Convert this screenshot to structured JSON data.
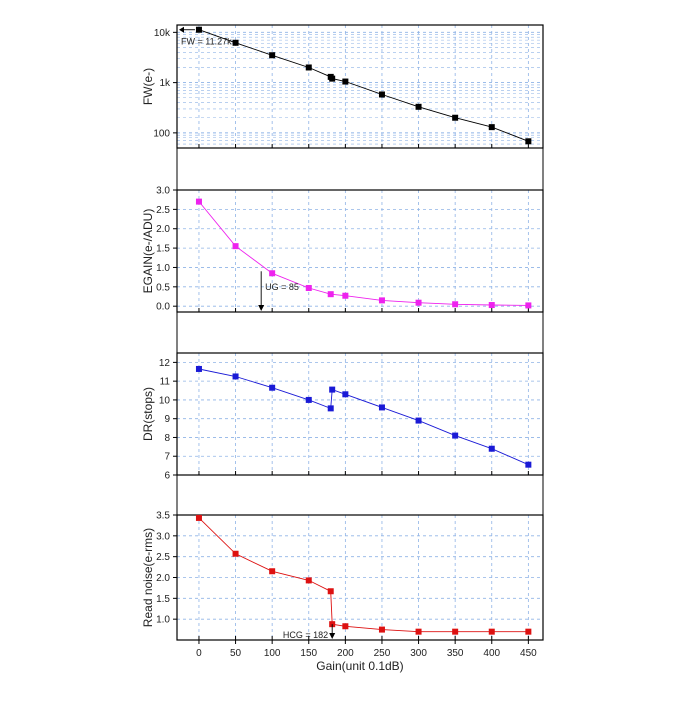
{
  "chart_data": [
    {
      "type": "line",
      "ylabel": "FW(e-)",
      "yscale": "log",
      "ylim": [
        50,
        14000
      ],
      "yticks": [
        100,
        1000,
        10000
      ],
      "ytick_labels": [
        "100",
        "1k",
        "10k"
      ],
      "xlim": [
        -30,
        470
      ],
      "color": "#000000",
      "x": [
        0,
        50,
        100,
        150,
        180,
        182,
        200,
        250,
        300,
        350,
        400,
        450
      ],
      "y": [
        11270,
        6200,
        3500,
        2000,
        1300,
        1200,
        1050,
        580,
        330,
        200,
        130,
        68
      ],
      "annotation": {
        "text": "FW = 11.27k",
        "x": 0,
        "y": 11270
      }
    },
    {
      "type": "line",
      "ylabel": "EGAIN(e-/ADU)",
      "ylim": [
        -0.15,
        3.0
      ],
      "yticks": [
        0.0,
        0.5,
        1.0,
        1.5,
        2.0,
        2.5,
        3.0
      ],
      "ytick_labels": [
        "0.0",
        "0.5",
        "1.0",
        "1.5",
        "2.0",
        "2.5",
        "3.0"
      ],
      "xlim": [
        -30,
        470
      ],
      "color": "#ee22ee",
      "x": [
        0,
        50,
        100,
        150,
        180,
        200,
        250,
        300,
        350,
        400,
        450
      ],
      "y": [
        2.7,
        1.55,
        0.85,
        0.47,
        0.31,
        0.27,
        0.15,
        0.09,
        0.05,
        0.03,
        0.02
      ],
      "annotation": {
        "text": "UG = 85",
        "x": 85,
        "y": 0.0
      }
    },
    {
      "type": "line",
      "ylabel": "DR(stops)",
      "ylim": [
        6,
        12.5
      ],
      "yticks": [
        6,
        7,
        8,
        9,
        10,
        11,
        12
      ],
      "ytick_labels": [
        "6",
        "7",
        "8",
        "9",
        "10",
        "11",
        "12"
      ],
      "xlim": [
        -30,
        470
      ],
      "color": "#1a1ad6",
      "x": [
        0,
        50,
        100,
        150,
        180,
        182,
        200,
        250,
        300,
        350,
        400,
        450
      ],
      "y": [
        11.65,
        11.25,
        10.65,
        10.0,
        9.55,
        10.55,
        10.3,
        9.6,
        8.9,
        8.1,
        7.4,
        6.55
      ]
    },
    {
      "type": "line",
      "ylabel": "Read noise(e-rms)",
      "xlabel": "Gain(unit 0.1dB)",
      "ylim": [
        0.5,
        3.5
      ],
      "yticks": [
        1.0,
        1.5,
        2.0,
        2.5,
        3.0,
        3.5
      ],
      "ytick_labels": [
        "1.0",
        "1.5",
        "2.0",
        "2.5",
        "3.0",
        "3.5"
      ],
      "xlim": [
        -30,
        470
      ],
      "xticks": [
        0,
        50,
        100,
        150,
        200,
        250,
        300,
        350,
        400,
        450
      ],
      "xtick_labels": [
        "0",
        "50",
        "100",
        "150",
        "200",
        "250",
        "300",
        "350",
        "400",
        "450"
      ],
      "color": "#dd1111",
      "x": [
        0,
        50,
        100,
        150,
        180,
        182,
        200,
        250,
        300,
        350,
        400,
        450
      ],
      "y": [
        3.43,
        2.57,
        2.15,
        1.93,
        1.67,
        0.88,
        0.83,
        0.75,
        0.7,
        0.7,
        0.7,
        0.7
      ],
      "annotation": {
        "text": "HCG = 182",
        "x": 182,
        "y": 0.5
      }
    }
  ]
}
